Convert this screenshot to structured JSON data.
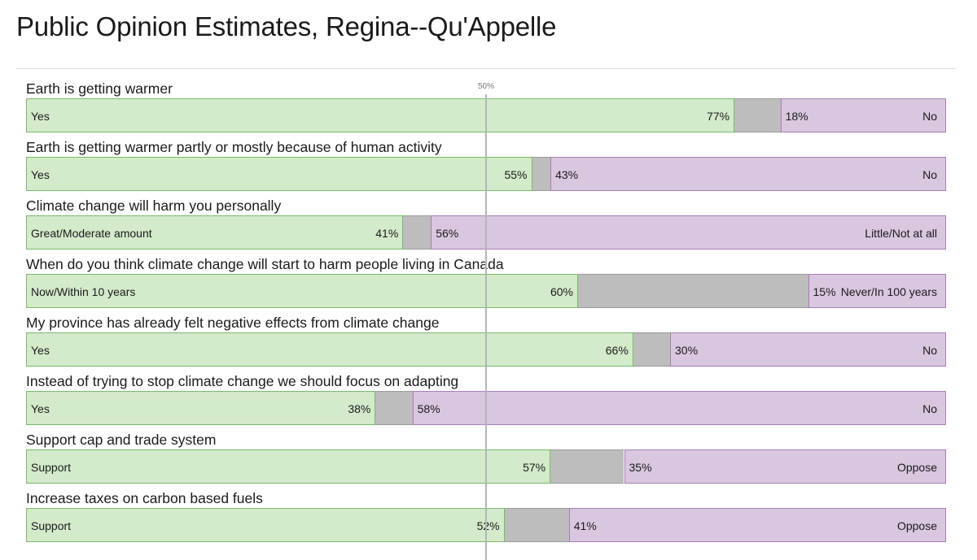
{
  "title": "Public Opinion Estimates, Regina--Qu'Appelle",
  "midpoint_label": "50%",
  "colors": {
    "agree_fill": "#d3eacb",
    "agree_border": "#79b96c",
    "neutral_fill": "#bdbdbd",
    "disagree_fill": "#d9c7df",
    "disagree_border": "#a67fb3"
  },
  "chart_data": {
    "type": "bar",
    "orientation": "horizontal-stacked",
    "reference_line": 50,
    "xlim": [
      0,
      100
    ],
    "rows": [
      {
        "question": "Earth is getting warmer",
        "agree_label": "Yes",
        "agree": 77,
        "disagree": 18,
        "disagree_label": "No"
      },
      {
        "question": "Earth is getting warmer partly or mostly because of human activity",
        "agree_label": "Yes",
        "agree": 55,
        "disagree": 43,
        "disagree_label": "No"
      },
      {
        "question": "Climate change will harm you personally",
        "agree_label": "Great/Moderate amount",
        "agree": 41,
        "disagree": 56,
        "disagree_label": "Little/Not at all"
      },
      {
        "question": "When do you think climate change will start to harm people living in Canada",
        "agree_label": "Now/Within 10 years",
        "agree": 60,
        "disagree": 15,
        "disagree_label": "Never/In 100 years"
      },
      {
        "question": "My province has already felt negative effects from climate change",
        "agree_label": "Yes",
        "agree": 66,
        "disagree": 30,
        "disagree_label": "No"
      },
      {
        "question": "Instead of trying to stop climate change we should focus on adapting",
        "agree_label": "Yes",
        "agree": 38,
        "disagree": 58,
        "disagree_label": "No"
      },
      {
        "question": "Support cap and trade system",
        "agree_label": "Support",
        "agree": 57,
        "disagree": 35,
        "disagree_label": "Oppose"
      },
      {
        "question": "Increase taxes on carbon based fuels",
        "agree_label": "Support",
        "agree": 52,
        "disagree": 41,
        "disagree_label": "Oppose"
      }
    ]
  }
}
